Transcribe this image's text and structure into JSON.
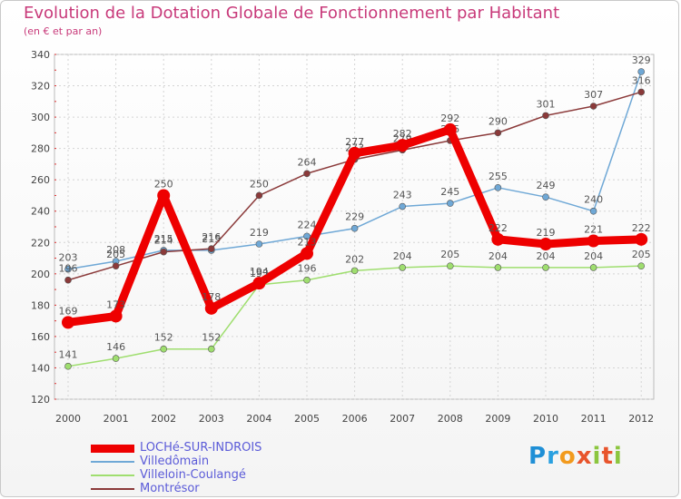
{
  "header": {
    "title": "Evolution de la Dotation Globale de Fonctionnement par Habitant",
    "subtitle": "(en € et par an)"
  },
  "brand": {
    "text": "Proxiti",
    "color_letters": [
      "#1f8fd6",
      "#f29a1d",
      "#e8542c",
      "#8cc63f"
    ]
  },
  "chart_data": {
    "type": "line",
    "title": "Evolution de la Dotation Globale de Fonctionnement par Habitant",
    "subtitle": "(en € et par an)",
    "xlabel": "",
    "ylabel": "",
    "x": [
      "2000",
      "2001",
      "2002",
      "2003",
      "2004",
      "2005",
      "2006",
      "2007",
      "2008",
      "2009",
      "2010",
      "2011",
      "2012"
    ],
    "ylim": [
      120,
      340
    ],
    "yticks": [
      120,
      140,
      160,
      180,
      200,
      220,
      240,
      260,
      280,
      300,
      320,
      340
    ],
    "grid": true,
    "legend": "bottom-left",
    "series": [
      {
        "name": "LOCHé-SUR-INDROIS",
        "color": "#ee0000",
        "emphasis": "thick",
        "values": [
          169,
          173,
          250,
          178,
          194,
          213,
          277,
          282,
          292,
          222,
          219,
          221,
          222
        ],
        "labels": [
          "169",
          "173",
          "250",
          "178",
          "194",
          "213",
          "277",
          "282",
          "292",
          "222",
          "219",
          "221",
          "222"
        ]
      },
      {
        "name": "Villedômain",
        "color": "#6fa8d6",
        "emphasis": "thin",
        "values": [
          203,
          208,
          215,
          215,
          219,
          224,
          229,
          243,
          245,
          255,
          249,
          240,
          329
        ],
        "labels": [
          "203",
          "208",
          "215",
          "215",
          "219",
          "224",
          "229",
          "243",
          "245",
          "255",
          "249",
          "240",
          "329"
        ]
      },
      {
        "name": "Villeloin-Coulangé",
        "color": "#9fde6f",
        "emphasis": "thin",
        "values": [
          141,
          146,
          152,
          152,
          193,
          196,
          202,
          204,
          205,
          204,
          204,
          204,
          205
        ],
        "labels": [
          "141",
          "146",
          "152",
          "152",
          "193",
          "196",
          "202",
          "204",
          "205",
          "204",
          "204",
          "204",
          "205"
        ]
      },
      {
        "name": "Montrésor",
        "color": "#8b3a3a",
        "emphasis": "thin",
        "values": [
          196,
          205,
          214,
          216,
          250,
          264,
          273,
          279,
          285,
          290,
          301,
          307,
          316
        ],
        "labels": [
          "196",
          "205",
          "214",
          "216",
          "250",
          "264",
          "273",
          "279",
          "285",
          "290",
          "301",
          "307",
          "316"
        ]
      }
    ]
  }
}
